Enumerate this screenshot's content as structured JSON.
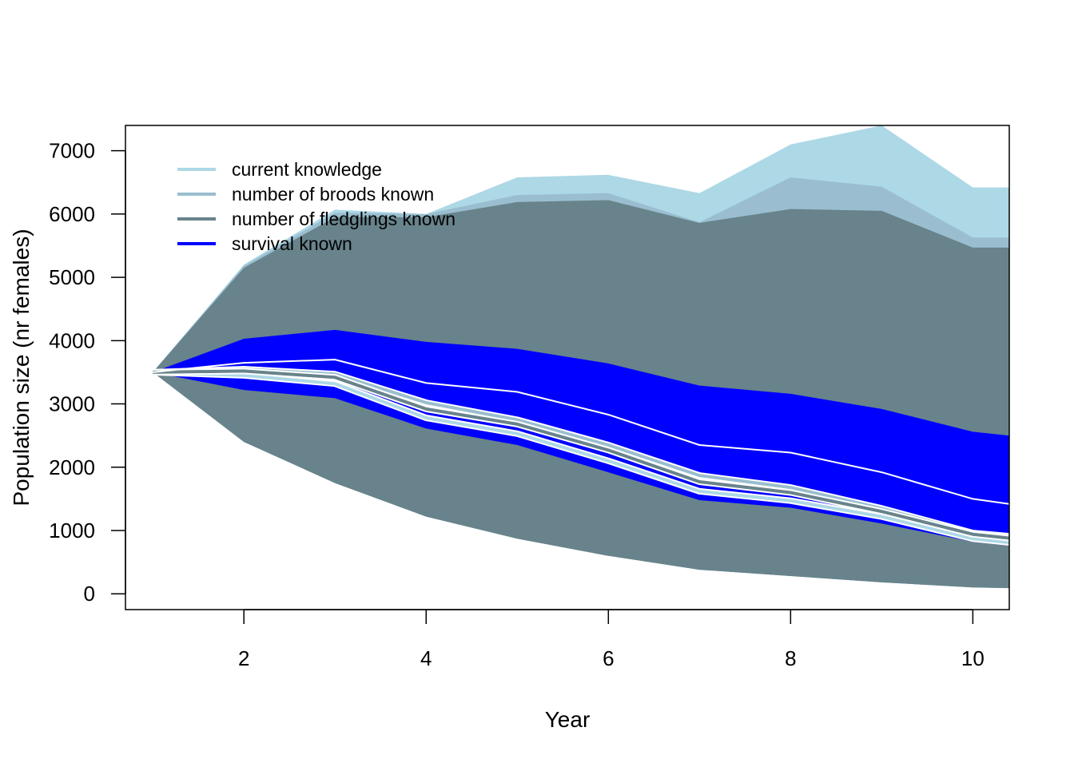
{
  "chart_data": {
    "type": "area",
    "title": "",
    "xlabel": "Year",
    "ylabel": "Population size (nr females)",
    "xlim": [
      0.7,
      10.4
    ],
    "ylim": [
      -250,
      7400
    ],
    "x": [
      1,
      2,
      3,
      4,
      5,
      6,
      7,
      8,
      9,
      10,
      10.4
    ],
    "xticks": [
      2,
      4,
      6,
      8,
      10
    ],
    "yticks": [
      0,
      1000,
      2000,
      3000,
      4000,
      5000,
      6000,
      7000
    ],
    "legend_position": "top-left",
    "series": [
      {
        "name": "current knowledge",
        "color": "#ADD8E6",
        "upper": [
          3500,
          5200,
          6070,
          6000,
          6580,
          6620,
          6330,
          7100,
          7400,
          6420,
          6420
        ],
        "lower": [
          3500,
          2400,
          1750,
          1220,
          870,
          600,
          380,
          280,
          180,
          100,
          90
        ],
        "median": [
          3500,
          3450,
          3320,
          2780,
          2530,
          2100,
          1620,
          1470,
          1220,
          870,
          810
        ]
      },
      {
        "name": "number of broods known",
        "color": "#9ABECF",
        "upper": [
          3500,
          5180,
          6020,
          6000,
          6300,
          6330,
          5870,
          6580,
          6430,
          5630,
          5630
        ],
        "lower": [
          3500,
          2400,
          1750,
          1220,
          870,
          600,
          380,
          280,
          180,
          100,
          90
        ],
        "median": [
          3500,
          3550,
          3470,
          3020,
          2750,
          2350,
          1870,
          1680,
          1350,
          960,
          910
        ]
      },
      {
        "name": "number of fledglings known",
        "color": "#68838B",
        "upper": [
          3500,
          5150,
          5950,
          5950,
          6190,
          6220,
          5860,
          6080,
          6050,
          5470,
          5470
        ],
        "lower": [
          3500,
          2400,
          1750,
          1220,
          870,
          600,
          380,
          280,
          180,
          100,
          90
        ],
        "median": [
          3500,
          3520,
          3420,
          2920,
          2680,
          2270,
          1770,
          1600,
          1300,
          940,
          880
        ]
      },
      {
        "name": "survival known",
        "color": "#0000FF",
        "upper": [
          3500,
          4030,
          4170,
          3980,
          3870,
          3640,
          3290,
          3160,
          2920,
          2560,
          2500
        ],
        "lower": [
          3500,
          3220,
          3090,
          2610,
          2350,
          1920,
          1480,
          1360,
          1110,
          820,
          760
        ],
        "median": [
          3500,
          3650,
          3700,
          3330,
          3190,
          2830,
          2350,
          2230,
          1920,
          1500,
          1420
        ]
      }
    ]
  }
}
